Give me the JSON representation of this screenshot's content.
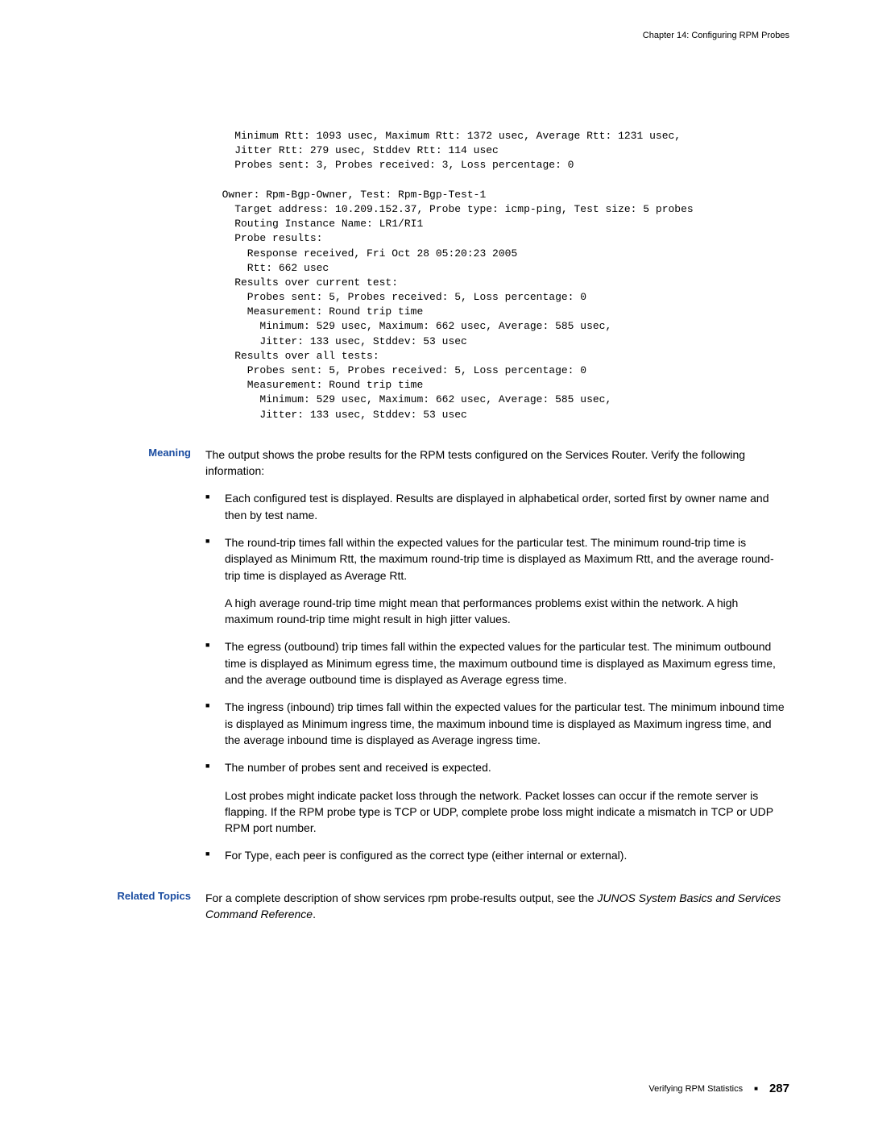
{
  "header": {
    "chapter": "Chapter 14: Configuring RPM Probes"
  },
  "codeBlock": "    Minimum Rtt: 1093 usec, Maximum Rtt: 1372 usec, Average Rtt: 1231 usec,\n    Jitter Rtt: 279 usec, Stddev Rtt: 114 usec\n    Probes sent: 3, Probes received: 3, Loss percentage: 0\n\n  Owner: Rpm-Bgp-Owner, Test: Rpm-Bgp-Test-1\n    Target address: 10.209.152.37, Probe type: icmp-ping, Test size: 5 probes\n    Routing Instance Name: LR1/RI1\n    Probe results:\n      Response received, Fri Oct 28 05:20:23 2005\n      Rtt: 662 usec\n    Results over current test:\n      Probes sent: 5, Probes received: 5, Loss percentage: 0\n      Measurement: Round trip time\n        Minimum: 529 usec, Maximum: 662 usec, Average: 585 usec,\n        Jitter: 133 usec, Stddev: 53 usec\n    Results over all tests:\n      Probes sent: 5, Probes received: 5, Loss percentage: 0\n      Measurement: Round trip time\n        Minimum: 529 usec, Maximum: 662 usec, Average: 585 usec,\n        Jitter: 133 usec, Stddev: 53 usec",
  "meaning": {
    "label": "Meaning",
    "intro": "The output shows the probe results for the RPM tests configured on the Services Router. Verify the following information:",
    "bullets": {
      "b1": "Each configured test is displayed. Results are displayed in alphabetical order, sorted first by owner name and then by test name.",
      "b2_p1a": "The round-trip times fall within the expected values for the particular test. The minimum round-trip time is displayed as ",
      "b2_t1": "Minimum Rtt",
      "b2_p1b": ", the maximum round-trip time is displayed as ",
      "b2_t2": "Maximum Rtt",
      "b2_p1c": ", and the average round-trip time is displayed as ",
      "b2_t3": "Average Rtt",
      "b2_p1d": ".",
      "b2_p2": "A high average round-trip time might mean that performances problems exist within the network. A high maximum round-trip time might result in high jitter values.",
      "b3_a": "The egress (outbound) trip times fall within the expected values for the particular test. The minimum outbound time is displayed as ",
      "b3_t1": "Minimum egress time",
      "b3_b": ", the maximum outbound time is displayed as ",
      "b3_t2": "Maximum egress time",
      "b3_c": ", and the average outbound time is displayed as ",
      "b3_t3": "Average egress time",
      "b3_d": ".",
      "b4_a": "The ingress (inbound) trip times fall within the expected values for the particular test. The minimum inbound time is displayed as ",
      "b4_t1": "Minimum ingress time",
      "b4_b": ", the maximum inbound time is displayed as ",
      "b4_t2": "Maximum ingress time",
      "b4_c": ", and the average inbound time is displayed as ",
      "b4_t3": "Average ingress time",
      "b4_d": ".",
      "b5_p1": "The number of probes sent and received is expected.",
      "b5_p2": "Lost probes might indicate packet loss through the network. Packet losses can occur if the remote server is flapping. If the RPM probe type is TCP or UDP, complete probe loss might indicate a mismatch in TCP or UDP RPM port number.",
      "b6_a": "For ",
      "b6_t1": "Type",
      "b6_b": ", each peer is configured as the correct type (either internal or external)."
    }
  },
  "related": {
    "label": "Related Topics",
    "a": "For a complete description of ",
    "cmd": "show services rpm probe-results",
    "b": " output, see the ",
    "ref": "JUNOS System Basics and Services Command Reference",
    "c": "."
  },
  "footer": {
    "text": "Verifying RPM Statistics",
    "page": "287"
  }
}
